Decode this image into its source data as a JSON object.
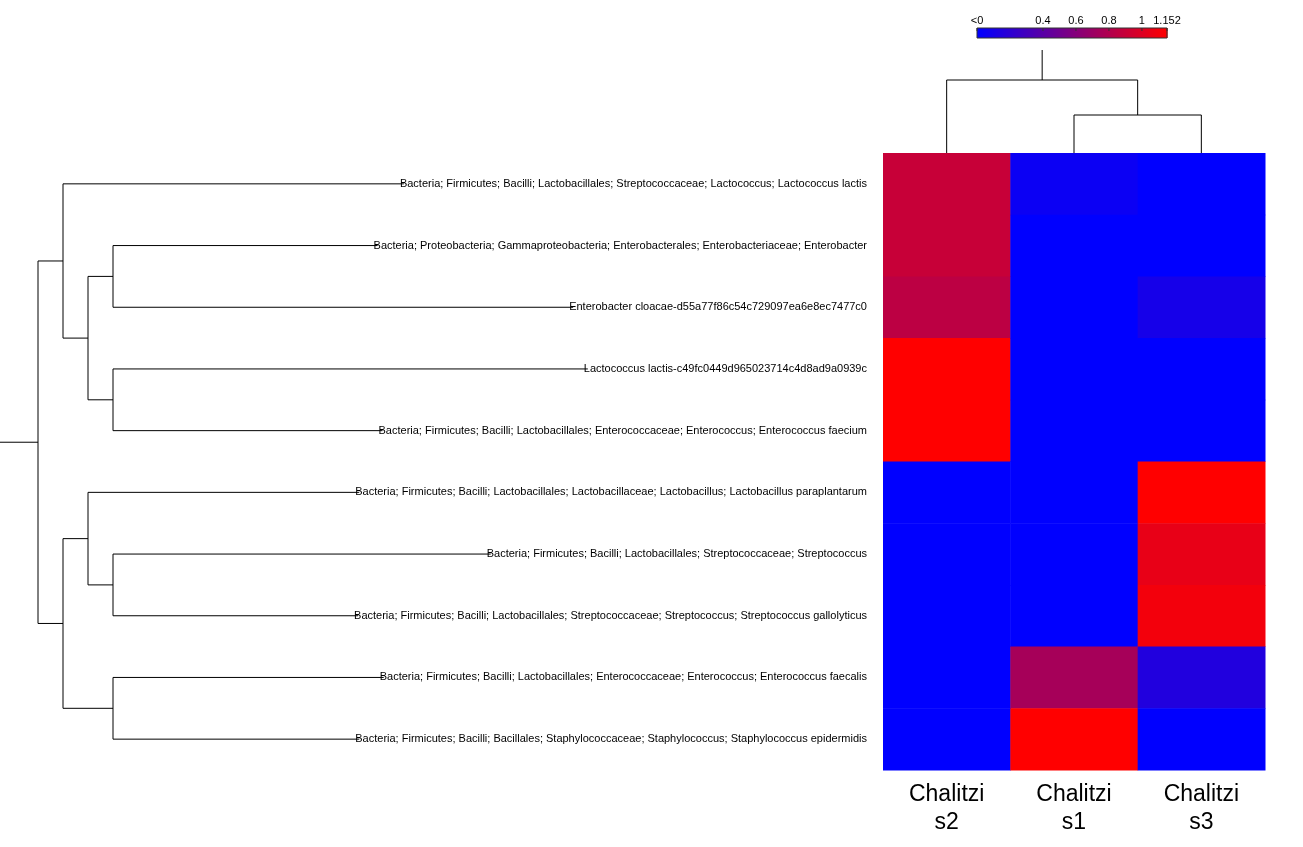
{
  "chart_data": {
    "type": "heatmap",
    "categories": [
      "Chalitzi s2",
      "Chalitzi s1",
      "Chalitzi s3"
    ],
    "y_categories": [
      "Bacteria; Firmicutes; Bacilli; Lactobacillales; Streptococcaceae; Lactococcus; Lactococcus lactis",
      "Bacteria; Proteobacteria; Gammaproteobacteria; Enterobacterales; Enterobacteriaceae; Enterobacter",
      "Enterobacter cloacae-d55a77f86c54c729097ea6e8ec7477c0",
      "Lactococcus lactis-c49fc0449d965023714c4d8ad9a0939c",
      "Bacteria; Firmicutes; Bacilli; Lactobacillales; Enterococcaceae; Enterococcus; Enterococcus faecium",
      "Bacteria; Firmicutes; Bacilli; Lactobacillales; Lactobacillaceae; Lactobacillus; Lactobacillus paraplantarum",
      "Bacteria; Firmicutes; Bacilli; Lactobacillales; Streptococcaceae; Streptococcus",
      "Bacteria; Firmicutes; Bacilli; Lactobacillales; Streptococcaceae; Streptococcus; Streptococcus gallolyticus",
      "Bacteria; Firmicutes; Bacilli; Lactobacillales; Enterococcaceae; Enterococcus; Enterococcus faecalis",
      "Bacteria; Firmicutes; Bacilli; Bacillales; Staphylococcaceae; Staphylococcus; Staphylococcus epidermidis"
    ],
    "cells": [
      [
        0.9,
        0.05,
        0
      ],
      [
        0.9,
        0,
        0
      ],
      [
        0.85,
        0,
        0.1
      ],
      [
        1.152,
        0,
        0
      ],
      [
        1.152,
        0,
        0
      ],
      [
        0,
        0,
        1.152
      ],
      [
        0,
        0,
        1.05
      ],
      [
        0,
        0,
        1.1
      ],
      [
        0,
        0.75,
        0.15
      ],
      [
        0,
        1.152,
        0
      ]
    ],
    "clim": [
      0,
      1.152
    ],
    "cticks": [
      {
        "value": 0,
        "label": "<0"
      },
      0.4,
      0.6,
      0.8,
      1,
      1.152
    ]
  }
}
